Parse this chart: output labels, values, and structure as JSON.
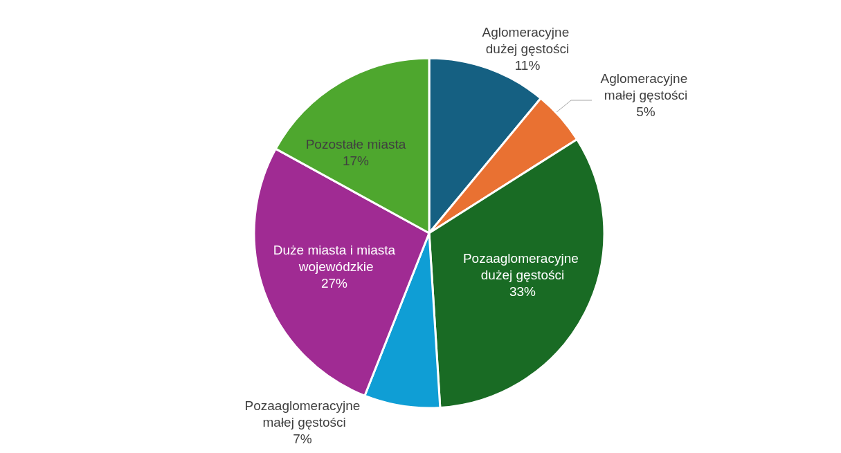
{
  "chart_data": {
    "type": "pie",
    "categories": [
      "Aglomeracyjne dużej gęstości",
      "Aglomeracyjne małej gęstości",
      "Pozaaglomeracyjne dużej gęstości",
      "Pozaaglomeracyjne małej gęstości",
      "Duże miasta i miasta wojewódzkie",
      "Pozostałe miasta"
    ],
    "values": [
      11,
      5,
      33,
      7,
      27,
      17
    ],
    "value_labels": [
      "11%",
      "5%",
      "33%",
      "7%",
      "27%",
      "17%"
    ],
    "colors": [
      "#156082",
      "#e97132",
      "#196b24",
      "#0f9ed5",
      "#a02b93",
      "#4ea72e"
    ],
    "legend": false
  }
}
